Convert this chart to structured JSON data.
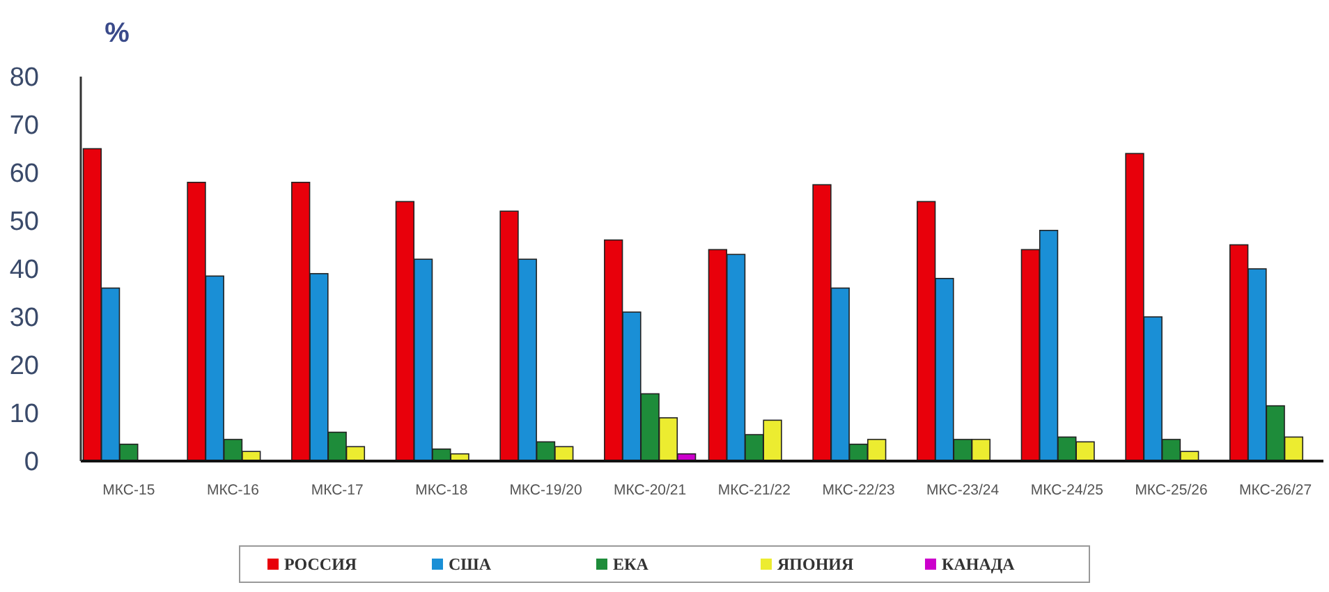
{
  "chart_data": {
    "type": "bar",
    "ylabel": "%",
    "categories": [
      "МКС-15",
      "МКС-16",
      "МКС-17",
      "МКС-18",
      "МКС-19/20",
      "МКС-20/21",
      "МКС-21/22",
      "МКС-22/23",
      "МКС-23/24",
      "МКС-24/25",
      "МКС-25/26",
      "МКС-26/27"
    ],
    "series": [
      {
        "name": "РОССИЯ",
        "color": "#e8000b",
        "values": [
          65,
          58,
          58,
          54,
          52,
          46,
          44,
          57.5,
          54,
          44,
          64,
          45
        ]
      },
      {
        "name": "США",
        "color": "#1a8fd6",
        "values": [
          36,
          38.5,
          39,
          42,
          42,
          31,
          43,
          36,
          38,
          48,
          30,
          40
        ]
      },
      {
        "name": "ЕКА",
        "color": "#1e8c3a",
        "values": [
          3.5,
          4.5,
          6,
          2.5,
          4,
          14,
          5.5,
          3.5,
          4.5,
          5,
          4.5,
          11.5
        ]
      },
      {
        "name": "ЯПОНИЯ",
        "color": "#ecec30",
        "values": [
          0,
          2,
          3,
          1.5,
          3,
          9,
          8.5,
          4.5,
          4.5,
          4,
          2,
          5
        ]
      },
      {
        "name": "КАНАДА",
        "color": "#cc00cc",
        "values": [
          0,
          0,
          0,
          0,
          0,
          1.5,
          0,
          0,
          0,
          0,
          0,
          0
        ]
      }
    ],
    "ylim": [
      0,
      80
    ],
    "yticks": [
      0,
      10,
      20,
      30,
      40,
      50,
      60,
      70,
      80
    ],
    "grid": false,
    "legend": "bottom"
  }
}
